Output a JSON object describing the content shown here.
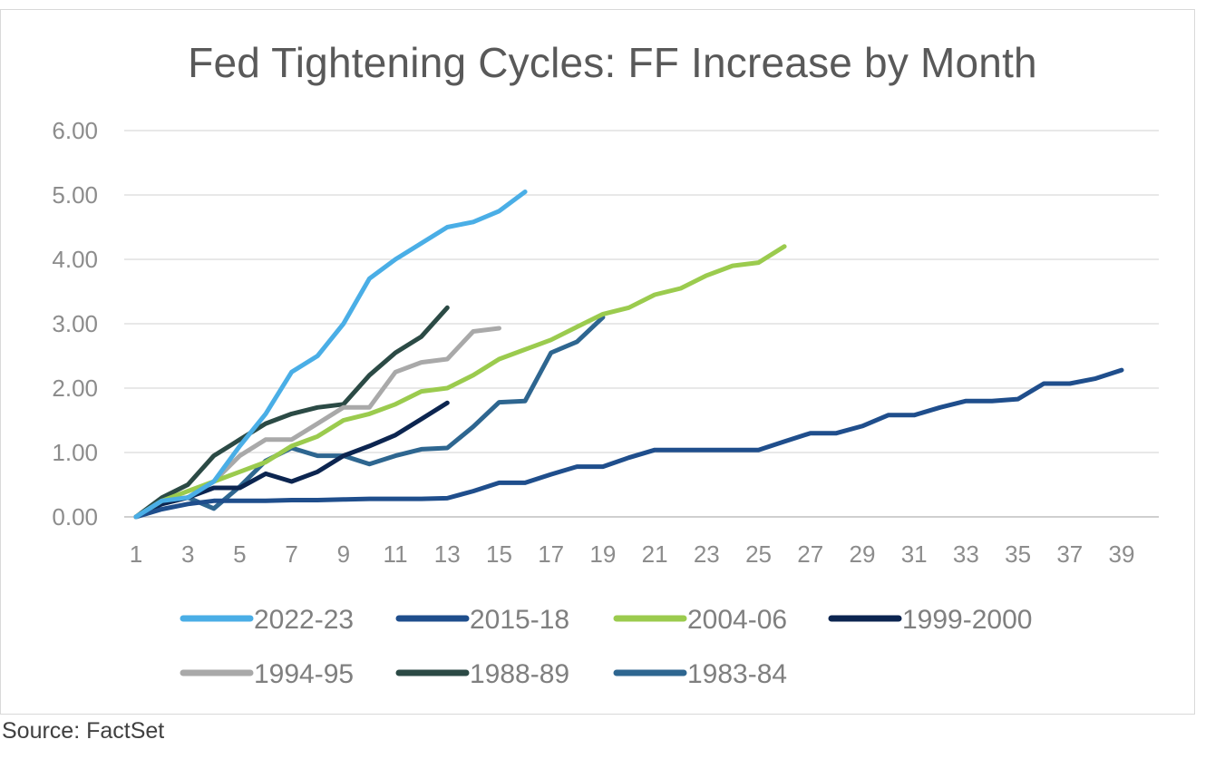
{
  "chart_data": {
    "type": "line",
    "title": "Fed Tightening Cycles: FF Increase by Month",
    "xlabel": "",
    "ylabel": "",
    "ylim": [
      0,
      6
    ],
    "xlim": [
      1,
      40
    ],
    "y_ticks": [
      "0.00",
      "1.00",
      "2.00",
      "3.00",
      "4.00",
      "5.00",
      "6.00"
    ],
    "x_ticks": [
      "1",
      "3",
      "5",
      "7",
      "9",
      "11",
      "13",
      "15",
      "17",
      "19",
      "21",
      "23",
      "25",
      "27",
      "29",
      "31",
      "33",
      "35",
      "37",
      "39"
    ],
    "grid": true,
    "legend_position": "bottom",
    "series": [
      {
        "name": "2022-23",
        "color": "#4aaee6",
        "values": [
          0.0,
          0.25,
          0.3,
          0.55,
          1.1,
          1.6,
          2.25,
          2.5,
          3.0,
          3.7,
          4.0,
          4.25,
          4.5,
          4.58,
          4.75,
          5.05
        ]
      },
      {
        "name": "2015-18",
        "color": "#1f4e8c",
        "values": [
          0.0,
          0.12,
          0.2,
          0.25,
          0.25,
          0.25,
          0.26,
          0.26,
          0.27,
          0.28,
          0.28,
          0.28,
          0.29,
          0.4,
          0.53,
          0.53,
          0.66,
          0.78,
          0.78,
          0.92,
          1.04,
          1.04,
          1.04,
          1.04,
          1.04,
          1.17,
          1.3,
          1.3,
          1.41,
          1.58,
          1.58,
          1.7,
          1.8,
          1.8,
          1.83,
          2.07,
          2.07,
          2.15,
          2.28
        ]
      },
      {
        "name": "2004-06",
        "color": "#9bcb4e",
        "values": [
          0.0,
          0.25,
          0.4,
          0.55,
          0.7,
          0.85,
          1.1,
          1.25,
          1.5,
          1.6,
          1.75,
          1.95,
          2.0,
          2.2,
          2.45,
          2.6,
          2.75,
          2.95,
          3.15,
          3.25,
          3.45,
          3.55,
          3.75,
          3.9,
          3.95,
          4.2
        ]
      },
      {
        "name": "1999-2000",
        "color": "#0c2550",
        "values": [
          0.0,
          0.2,
          0.3,
          0.45,
          0.45,
          0.67,
          0.55,
          0.7,
          0.95,
          1.1,
          1.27,
          1.52,
          1.77
        ]
      },
      {
        "name": "1994-95",
        "color": "#a9a9a9",
        "values": [
          0.0,
          0.25,
          0.3,
          0.55,
          0.95,
          1.2,
          1.2,
          1.45,
          1.7,
          1.7,
          2.25,
          2.4,
          2.45,
          2.88,
          2.93
        ]
      },
      {
        "name": "1988-89",
        "color": "#2b4a45",
        "values": [
          0.0,
          0.3,
          0.5,
          0.95,
          1.2,
          1.45,
          1.6,
          1.7,
          1.75,
          2.2,
          2.55,
          2.8,
          3.25
        ]
      },
      {
        "name": "1983-84",
        "color": "#2e6690",
        "values": [
          0.0,
          0.25,
          0.3,
          0.13,
          0.47,
          0.87,
          1.07,
          0.95,
          0.95,
          0.82,
          0.95,
          1.05,
          1.07,
          1.4,
          1.78,
          1.8,
          2.55,
          2.72,
          3.1
        ]
      }
    ]
  },
  "source": "Source: FactSet"
}
